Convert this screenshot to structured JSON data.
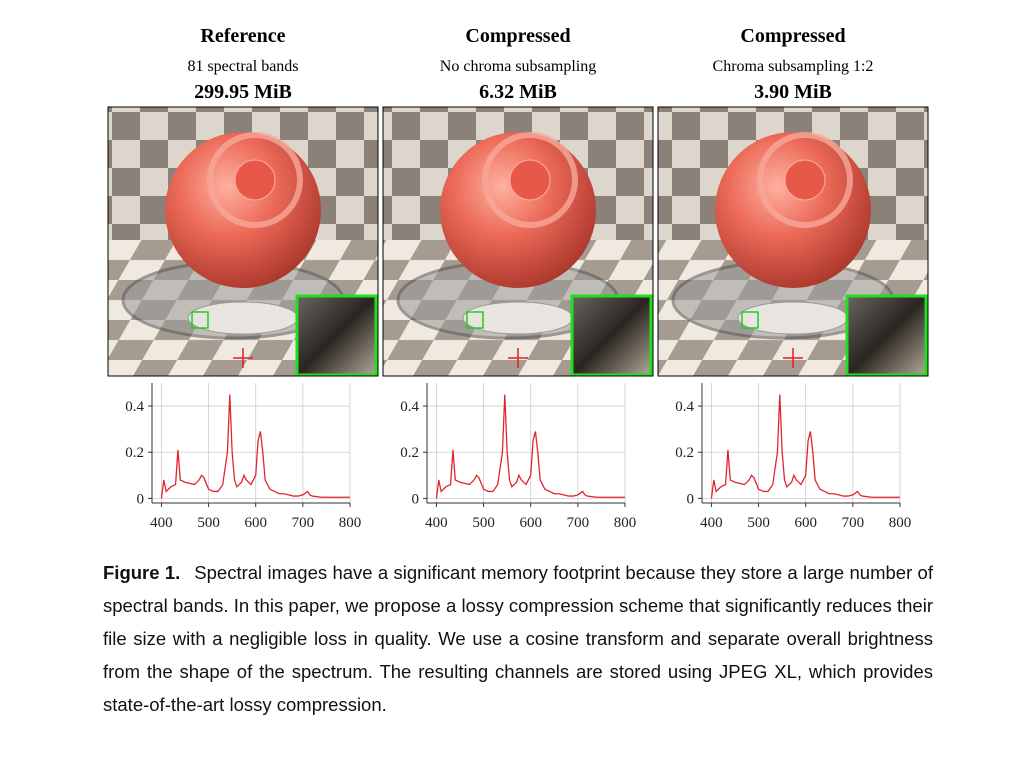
{
  "panels": [
    {
      "title": "Reference",
      "subtitle": "81 spectral bands",
      "size": "299.95 MiB"
    },
    {
      "title": "Compressed",
      "subtitle": "No chroma subsampling",
      "size": "6.32 MiB"
    },
    {
      "title": "Compressed",
      "subtitle": "Chroma subsampling 1:2",
      "size": "3.90 MiB"
    }
  ],
  "chart_data": [
    {
      "type": "line",
      "color": "#e02530",
      "grid": true,
      "xlim": [
        380,
        800
      ],
      "ylim": [
        -0.02,
        0.5
      ],
      "xticks": [
        400,
        500,
        600,
        700,
        800
      ],
      "yticks": [
        0,
        0.2,
        0.4
      ],
      "x": [
        400,
        405,
        410,
        415,
        420,
        430,
        435,
        440,
        450,
        460,
        470,
        480,
        485,
        490,
        500,
        510,
        520,
        530,
        540,
        545,
        550,
        555,
        560,
        570,
        575,
        580,
        590,
        600,
        605,
        610,
        615,
        620,
        625,
        630,
        640,
        650,
        660,
        670,
        680,
        690,
        700,
        710,
        715,
        720,
        740,
        760,
        780,
        800
      ],
      "values": [
        0.0,
        0.08,
        0.03,
        0.04,
        0.05,
        0.06,
        0.21,
        0.08,
        0.07,
        0.065,
        0.06,
        0.08,
        0.1,
        0.09,
        0.04,
        0.03,
        0.03,
        0.06,
        0.2,
        0.45,
        0.2,
        0.08,
        0.05,
        0.07,
        0.1,
        0.08,
        0.06,
        0.1,
        0.25,
        0.29,
        0.2,
        0.08,
        0.06,
        0.04,
        0.03,
        0.02,
        0.02,
        0.015,
        0.01,
        0.01,
        0.015,
        0.03,
        0.015,
        0.01,
        0.005,
        0.005,
        0.005,
        0.005
      ]
    },
    {
      "type": "line",
      "color": "#e02530",
      "grid": true,
      "xlim": [
        380,
        800
      ],
      "ylim": [
        -0.02,
        0.5
      ],
      "xticks": [
        400,
        500,
        600,
        700,
        800
      ],
      "yticks": [
        0,
        0.2,
        0.4
      ],
      "x": [
        400,
        405,
        410,
        415,
        420,
        430,
        435,
        440,
        450,
        460,
        470,
        480,
        485,
        490,
        500,
        510,
        520,
        530,
        540,
        545,
        550,
        555,
        560,
        570,
        575,
        580,
        590,
        600,
        605,
        610,
        615,
        620,
        625,
        630,
        640,
        650,
        660,
        670,
        680,
        690,
        700,
        710,
        715,
        720,
        740,
        760,
        780,
        800
      ],
      "values": [
        0.0,
        0.08,
        0.03,
        0.04,
        0.05,
        0.06,
        0.21,
        0.08,
        0.07,
        0.065,
        0.06,
        0.08,
        0.1,
        0.09,
        0.04,
        0.03,
        0.03,
        0.06,
        0.2,
        0.45,
        0.2,
        0.08,
        0.05,
        0.07,
        0.1,
        0.08,
        0.06,
        0.1,
        0.25,
        0.29,
        0.2,
        0.08,
        0.06,
        0.04,
        0.03,
        0.02,
        0.02,
        0.015,
        0.01,
        0.01,
        0.015,
        0.03,
        0.015,
        0.01,
        0.005,
        0.005,
        0.005,
        0.005
      ]
    },
    {
      "type": "line",
      "color": "#e02530",
      "grid": true,
      "xlim": [
        380,
        800
      ],
      "ylim": [
        -0.02,
        0.5
      ],
      "xticks": [
        400,
        500,
        600,
        700,
        800
      ],
      "yticks": [
        0,
        0.2,
        0.4
      ],
      "x": [
        400,
        405,
        410,
        415,
        420,
        430,
        435,
        440,
        450,
        460,
        470,
        480,
        485,
        490,
        500,
        510,
        520,
        530,
        540,
        545,
        550,
        555,
        560,
        570,
        575,
        580,
        590,
        600,
        605,
        610,
        615,
        620,
        625,
        630,
        640,
        650,
        660,
        670,
        680,
        690,
        700,
        710,
        715,
        720,
        740,
        760,
        780,
        800
      ],
      "values": [
        0.0,
        0.08,
        0.03,
        0.04,
        0.05,
        0.06,
        0.21,
        0.08,
        0.07,
        0.065,
        0.06,
        0.08,
        0.1,
        0.09,
        0.04,
        0.03,
        0.03,
        0.06,
        0.2,
        0.45,
        0.2,
        0.08,
        0.05,
        0.07,
        0.1,
        0.08,
        0.06,
        0.1,
        0.25,
        0.29,
        0.2,
        0.08,
        0.06,
        0.04,
        0.03,
        0.02,
        0.02,
        0.015,
        0.01,
        0.01,
        0.015,
        0.03,
        0.015,
        0.01,
        0.005,
        0.005,
        0.005,
        0.005
      ]
    }
  ],
  "caption": {
    "label": "Figure 1.",
    "text": "Spectral images have a significant memory footprint because they store a large number of spectral bands. In this paper, we propose a lossy compression scheme that significantly reduces their file size with a negligible loss in quality. We use a cosine transform and separate overall brightness from the shape of the spectrum. The resulting channels are stored using JPEG XL, which provides state-of-the-art lossy compression."
  }
}
